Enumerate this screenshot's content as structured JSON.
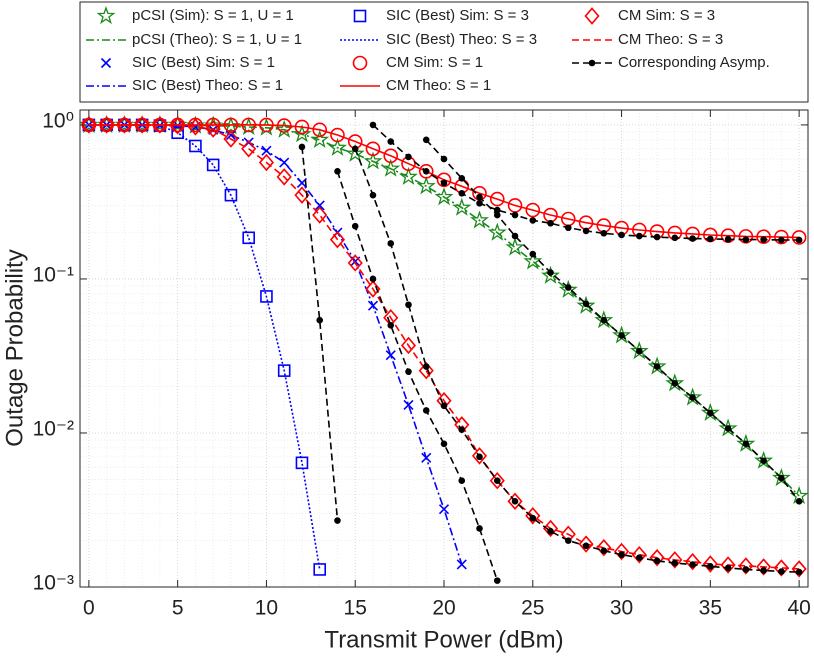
{
  "chart_data": {
    "type": "line",
    "x_label": "Transmit Power (dBm)",
    "y_label": "Outage Probability",
    "y_log": true,
    "grid": true,
    "minor_grid": true,
    "legend_position": "top",
    "xlim": [
      -0.5,
      40.5
    ],
    "xticks": [
      0,
      5,
      10,
      15,
      20,
      25,
      30,
      35,
      40
    ],
    "ylim": [
      0.001,
      1.25
    ],
    "yticks": [
      {
        "value": 0.001,
        "label": "10⁻³"
      },
      {
        "value": 0.01,
        "label": "10⁻²"
      },
      {
        "value": 0.1,
        "label": "10⁻¹"
      },
      {
        "value": 1,
        "label": "10⁰"
      }
    ],
    "x": [
      0,
      1,
      2,
      3,
      4,
      5,
      6,
      7,
      8,
      9,
      10,
      11,
      12,
      13,
      14,
      15,
      16,
      17,
      18,
      19,
      20,
      21,
      22,
      23,
      24,
      25,
      26,
      27,
      28,
      29,
      30,
      31,
      32,
      33,
      34,
      35,
      36,
      37,
      38,
      39,
      40
    ],
    "series": [
      {
        "name": "pCSI (Sim): S = 1, U = 1",
        "color": "#1a8a1a",
        "marker": "star",
        "values": [
          1,
          1,
          1,
          1,
          1,
          1,
          0.99,
          0.99,
          0.98,
          0.97,
          0.96,
          0.93,
          0.87,
          0.8,
          0.71,
          0.65,
          0.58,
          0.52,
          0.46,
          0.4,
          0.34,
          0.29,
          0.24,
          0.2,
          0.16,
          0.13,
          0.105,
          0.085,
          0.067,
          0.054,
          0.043,
          0.034,
          0.027,
          0.021,
          0.017,
          0.0135,
          0.0107,
          0.0085,
          0.0066,
          0.0051,
          0.0039
        ]
      },
      {
        "name": "pCSI (Theo): S = 1, U = 1",
        "color": "#1a8a1a",
        "line": "dashdot",
        "values": [
          1,
          1,
          1,
          1,
          1,
          1,
          0.99,
          0.99,
          0.98,
          0.97,
          0.96,
          0.93,
          0.87,
          0.8,
          0.71,
          0.65,
          0.58,
          0.52,
          0.46,
          0.4,
          0.34,
          0.29,
          0.24,
          0.2,
          0.16,
          0.13,
          0.105,
          0.085,
          0.067,
          0.054,
          0.043,
          0.034,
          0.027,
          0.021,
          0.017,
          0.0135,
          0.0107,
          0.0085,
          0.0066,
          0.0051,
          0.0039
        ]
      },
      {
        "name": "SIC (Best) Sim: S = 1",
        "color": "#0000ff",
        "marker": "x",
        "values": [
          1,
          1,
          1,
          1,
          0.99,
          0.99,
          0.97,
          0.93,
          0.86,
          0.77,
          0.68,
          0.57,
          0.42,
          0.3,
          0.2,
          0.13,
          0.067,
          0.032,
          0.0152,
          0.0069,
          0.0032,
          0.0014,
          null,
          null,
          null,
          null,
          null,
          null,
          null,
          null,
          null,
          null,
          null,
          null,
          null,
          null,
          null,
          null,
          null,
          null,
          null
        ]
      },
      {
        "name": "SIC (Best) Theo: S = 1",
        "color": "#0000ff",
        "line": "dashdot",
        "values": [
          1,
          1,
          1,
          1,
          0.99,
          0.99,
          0.97,
          0.93,
          0.86,
          0.77,
          0.68,
          0.57,
          0.42,
          0.3,
          0.2,
          0.13,
          0.067,
          0.032,
          0.0152,
          0.0069,
          0.0032,
          0.0014,
          null,
          null,
          null,
          null,
          null,
          null,
          null,
          null,
          null,
          null,
          null,
          null,
          null,
          null,
          null,
          null,
          null,
          null,
          null
        ]
      },
      {
        "name": "SIC (Best) Sim: S = 3",
        "color": "#0000ff",
        "marker": "square",
        "values": [
          1,
          1,
          1,
          1,
          0.99,
          0.89,
          0.73,
          0.55,
          0.35,
          0.185,
          0.077,
          0.0254,
          0.0064,
          0.0013,
          null,
          null,
          null,
          null,
          null,
          null,
          null,
          null,
          null,
          null,
          null,
          null,
          null,
          null,
          null,
          null,
          null,
          null,
          null,
          null,
          null,
          null,
          null,
          null,
          null,
          null,
          null
        ]
      },
      {
        "name": "SIC (Best) Theo: S = 3",
        "color": "#0000ff",
        "line": "dotted",
        "values": [
          1,
          1,
          1,
          1,
          0.99,
          0.89,
          0.73,
          0.55,
          0.35,
          0.185,
          0.077,
          0.0254,
          0.0064,
          0.0013,
          null,
          null,
          null,
          null,
          null,
          null,
          null,
          null,
          null,
          null,
          null,
          null,
          null,
          null,
          null,
          null,
          null,
          null,
          null,
          null,
          null,
          null,
          null,
          null,
          null,
          null,
          null
        ]
      },
      {
        "name": "CM Sim: S = 1",
        "color": "#ff0000",
        "marker": "circle",
        "values": [
          1,
          1,
          1,
          1,
          1,
          1,
          1,
          1,
          1,
          1,
          1,
          0.99,
          0.97,
          0.93,
          0.86,
          0.78,
          0.7,
          0.63,
          0.56,
          0.5,
          0.44,
          0.4,
          0.36,
          0.33,
          0.3,
          0.28,
          0.26,
          0.245,
          0.232,
          0.222,
          0.214,
          0.208,
          0.203,
          0.199,
          0.196,
          0.193,
          0.191,
          0.189,
          0.188,
          0.187,
          0.186
        ]
      },
      {
        "name": "CM Theo: S = 1",
        "color": "#ff0000",
        "line": "solid",
        "values": [
          1,
          1,
          1,
          1,
          1,
          1,
          1,
          1,
          1,
          1,
          1,
          0.99,
          0.97,
          0.93,
          0.86,
          0.78,
          0.7,
          0.63,
          0.56,
          0.5,
          0.44,
          0.4,
          0.36,
          0.33,
          0.3,
          0.28,
          0.26,
          0.245,
          0.232,
          0.222,
          0.214,
          0.208,
          0.203,
          0.199,
          0.196,
          0.193,
          0.191,
          0.189,
          0.188,
          0.187,
          0.186
        ]
      },
      {
        "name": "CM Sim: S = 3",
        "color": "#ff0000",
        "marker": "diamond",
        "values": [
          1,
          1,
          1,
          1,
          1,
          0.99,
          0.97,
          0.94,
          0.81,
          0.7,
          0.57,
          0.46,
          0.35,
          0.26,
          0.18,
          0.127,
          0.086,
          0.056,
          0.037,
          0.0254,
          0.0162,
          0.0113,
          0.0071,
          0.0049,
          0.0036,
          0.0029,
          0.0024,
          0.0022,
          0.0019,
          0.0018,
          0.0017,
          0.00162,
          0.00155,
          0.0015,
          0.00146,
          0.00141,
          0.00139,
          0.00137,
          0.00135,
          0.00133,
          0.00131
        ]
      },
      {
        "name": "CM Theo: S = 3",
        "color": "#ff0000",
        "line": "dashed",
        "values": [
          1,
          1,
          1,
          1,
          1,
          0.99,
          0.97,
          0.94,
          0.81,
          0.7,
          0.57,
          0.46,
          0.35,
          0.26,
          0.18,
          0.127,
          0.086,
          0.056,
          0.037,
          0.0254,
          0.0162,
          0.0113,
          0.0071,
          0.0049,
          0.0036,
          0.0029,
          0.0024,
          0.0022,
          0.0019,
          0.0018,
          0.0017,
          0.00162,
          0.00155,
          0.0015,
          0.00146,
          0.00141,
          0.00139,
          0.00137,
          0.00135,
          0.00133,
          0.00131
        ]
      },
      {
        "name": "Corresponding Asymp.",
        "color": "#000000",
        "marker": "dot",
        "line": "dashed",
        "x": [
          12,
          13,
          14,
          null,
          14,
          15,
          16,
          17,
          18,
          19,
          20,
          21,
          22,
          23,
          null,
          15,
          16,
          17,
          18,
          19,
          20,
          21,
          22,
          23,
          24,
          25,
          26,
          27,
          28,
          29,
          30,
          31,
          32,
          33,
          34,
          35,
          36,
          37,
          38,
          39,
          40,
          null,
          16,
          17,
          18,
          19,
          20,
          21,
          22,
          23,
          24,
          25,
          26,
          27,
          28,
          29,
          30,
          31,
          32,
          33,
          34,
          35,
          36,
          37,
          38,
          39,
          40,
          null,
          19,
          20,
          21,
          22,
          23,
          24,
          25,
          26,
          27,
          28,
          29,
          30,
          31,
          32,
          33,
          34,
          35,
          36,
          37,
          38,
          39,
          40
        ],
        "values": [
          0.72,
          0.054,
          0.0027,
          null,
          0.5,
          0.22,
          0.1,
          0.05,
          0.025,
          0.014,
          0.0085,
          0.0049,
          0.0024,
          0.0011,
          null,
          0.7,
          0.35,
          0.17,
          0.068,
          0.027,
          0.015,
          0.0105,
          0.007,
          0.0049,
          0.0036,
          0.0028,
          0.0023,
          0.002,
          0.00185,
          0.00172,
          0.00162,
          0.00155,
          0.00148,
          0.00143,
          0.0014,
          0.00136,
          0.00133,
          0.0013,
          0.00128,
          0.00126,
          0.00125,
          null,
          1.0,
          0.78,
          0.62,
          0.5,
          0.42,
          0.36,
          0.31,
          0.28,
          0.26,
          0.24,
          0.23,
          0.215,
          0.205,
          0.198,
          0.193,
          0.19,
          0.187,
          0.185,
          0.183,
          0.182,
          0.181,
          0.18,
          0.18,
          0.179,
          0.179,
          null,
          0.8,
          0.6,
          0.45,
          0.34,
          0.26,
          0.19,
          0.145,
          0.11,
          0.088,
          0.069,
          0.054,
          0.043,
          0.034,
          0.027,
          0.021,
          0.017,
          0.0135,
          0.0107,
          0.0085,
          0.0066,
          0.0051,
          0.0036
        ]
      }
    ]
  }
}
